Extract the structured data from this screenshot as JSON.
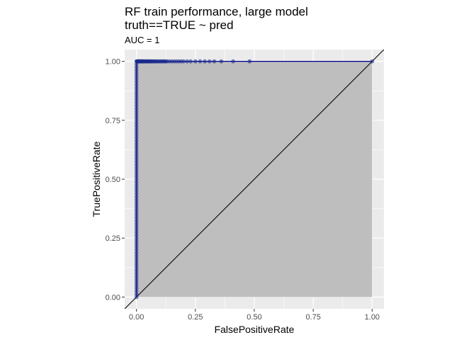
{
  "chart_data": {
    "type": "scatter",
    "title": "RF train performance, large model",
    "title_line2": "truth==TRUE ~ pred",
    "subtitle": "AUC = 1",
    "xlabel": "FalsePositiveRate",
    "ylabel": "TruePositiveRate",
    "xlim": [
      -0.05,
      1.05
    ],
    "ylim": [
      -0.05,
      1.05
    ],
    "x_ticks": [
      0,
      0.25,
      0.5,
      0.75,
      1
    ],
    "y_ticks": [
      0,
      0.25,
      0.5,
      0.75,
      1
    ],
    "x_tick_labels": [
      "0.00",
      "0.25",
      "0.50",
      "0.75",
      "1.00"
    ],
    "y_tick_labels": [
      "0.00",
      "0.25",
      "0.50",
      "0.75",
      "1.00"
    ],
    "grid": true,
    "panel_color": "#ebebeb",
    "area_fill_color": "#bebebe",
    "point_color": "#1a2a8c",
    "curve_color": "#00008b",
    "diagonal_color": "#000000",
    "series": [
      {
        "x": [
          0,
          0,
          0,
          0,
          0,
          0,
          0,
          0,
          0,
          0,
          0,
          0,
          0,
          0,
          0,
          0,
          0,
          0,
          0,
          0,
          0,
          0,
          0,
          0,
          0,
          0,
          0,
          0,
          0,
          0,
          0,
          0,
          0,
          0,
          0,
          0,
          0,
          0,
          0,
          0,
          0,
          0,
          0,
          0,
          0,
          0,
          0,
          0,
          0,
          0,
          0,
          0,
          0,
          0,
          0,
          0,
          0,
          0,
          0,
          0,
          0,
          0,
          0,
          0,
          0,
          0,
          0,
          0,
          0,
          0,
          0,
          0,
          0,
          0,
          0,
          0,
          0,
          0,
          0,
          0,
          0,
          0.002,
          0.004,
          0.006,
          0.008,
          0.01,
          0.012,
          0.014,
          0.016,
          0.018,
          0.02,
          0.022,
          0.024,
          0.026,
          0.028,
          0.03,
          0.033,
          0.036,
          0.039,
          0.042,
          0.045,
          0.048,
          0.051,
          0.054,
          0.057,
          0.06,
          0.064,
          0.068,
          0.072,
          0.076,
          0.08,
          0.085,
          0.09,
          0.095,
          0.1,
          0.105,
          0.11,
          0.115,
          0.12,
          0.125,
          0.13,
          0.14,
          0.15,
          0.16,
          0.17,
          0.18,
          0.19,
          0.2,
          0.215,
          0.23,
          0.25,
          0.27,
          0.29,
          0.31,
          0.33,
          0.36,
          0.41,
          0.48,
          1.0
        ],
        "y": [
          0,
          0.0125,
          0.025,
          0.0375,
          0.05,
          0.0625,
          0.075,
          0.0875,
          0.1,
          0.1125,
          0.125,
          0.1375,
          0.15,
          0.1625,
          0.175,
          0.1875,
          0.2,
          0.2125,
          0.225,
          0.2375,
          0.25,
          0.2625,
          0.275,
          0.2875,
          0.3,
          0.3125,
          0.325,
          0.3375,
          0.35,
          0.3625,
          0.375,
          0.3875,
          0.4,
          0.4125,
          0.425,
          0.4375,
          0.45,
          0.4625,
          0.475,
          0.4875,
          0.5,
          0.5125,
          0.525,
          0.5375,
          0.55,
          0.5625,
          0.575,
          0.5875,
          0.6,
          0.6125,
          0.625,
          0.6375,
          0.65,
          0.6625,
          0.675,
          0.6875,
          0.7,
          0.7125,
          0.725,
          0.7375,
          0.75,
          0.7625,
          0.775,
          0.7875,
          0.8,
          0.8125,
          0.825,
          0.8375,
          0.85,
          0.8625,
          0.875,
          0.8875,
          0.9,
          0.9125,
          0.925,
          0.9375,
          0.95,
          0.9625,
          0.975,
          0.9875,
          1,
          1,
          1,
          1,
          1,
          1,
          1,
          1,
          1,
          1,
          1,
          1,
          1,
          1,
          1,
          1,
          1,
          1,
          1,
          1,
          1,
          1,
          1,
          1,
          1,
          1,
          1,
          1,
          1,
          1,
          1,
          1,
          1,
          1,
          1,
          1,
          1,
          1,
          1,
          1,
          1,
          1,
          1,
          1,
          1,
          1,
          1,
          1,
          1,
          1,
          1,
          1,
          1,
          1,
          1,
          1,
          1,
          1,
          1
        ]
      }
    ]
  }
}
